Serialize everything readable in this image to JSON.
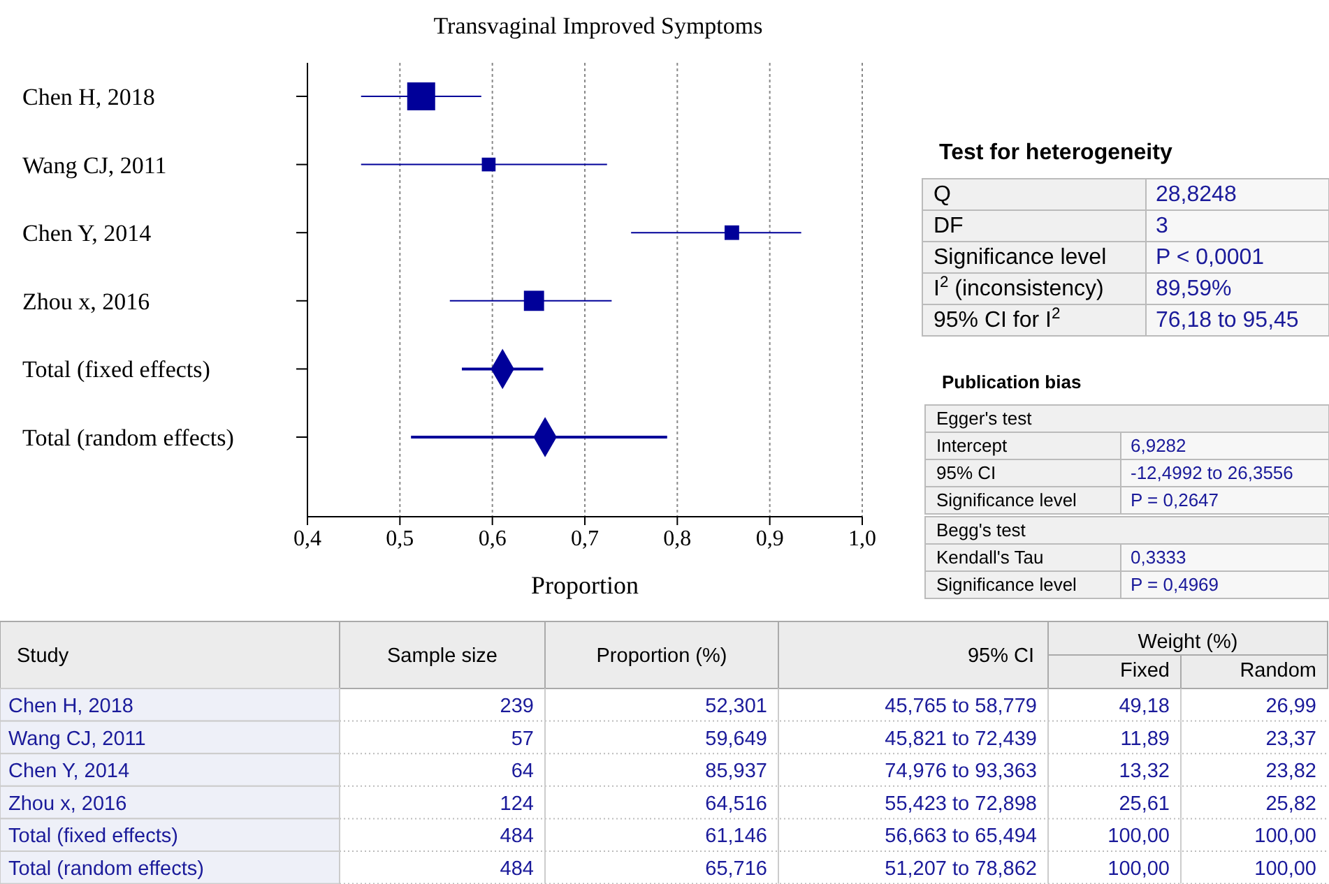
{
  "chart_data": [
    {
      "type": "scatter",
      "title": "Transvaginal Improved Symptoms",
      "xlabel": "Proportion",
      "orientation": "horizontal",
      "grid": "x",
      "categories": [
        "Chen H, 2018",
        "Wang CJ, 2011",
        "Chen Y, 2014",
        "Zhou x, 2016",
        "Total (fixed effects)",
        "Total (random effects)"
      ],
      "xlim": [
        0.4,
        1.0
      ],
      "xticks": [
        {
          "value": 0.4,
          "label": "0,4"
        },
        {
          "value": 0.5,
          "label": "0,5"
        },
        {
          "value": 0.6,
          "label": "0,6"
        },
        {
          "value": 0.7,
          "label": "0,7"
        },
        {
          "value": 0.8,
          "label": "0,8"
        },
        {
          "value": 0.9,
          "label": "0,9"
        },
        {
          "value": 1.0,
          "label": "1,0"
        }
      ],
      "series": [
        {
          "type": "bubble",
          "marker": "square",
          "color": "#000099",
          "values": [
            0.523,
            0.596,
            0.859,
            0.645,
            null,
            null
          ],
          "sizes": [
            1,
            0.2418,
            0.2708,
            0.5207,
            null,
            null
          ],
          "errors": [
            [
              0.458,
              0.588
            ],
            [
              0.458,
              0.724
            ],
            [
              0.75,
              0.934
            ],
            [
              0.554,
              0.729
            ],
            null,
            null
          ]
        },
        {
          "type": "scatter",
          "marker": "diamond",
          "color": "#000099",
          "values": [
            null,
            null,
            null,
            null,
            0.611,
            0.657
          ],
          "errors": [
            null,
            null,
            null,
            null,
            [
              0.567,
              0.655
            ],
            [
              0.512,
              0.789
            ]
          ]
        }
      ]
    },
    {
      "type": "other",
      "title": "Test for heterogeneity",
      "annotations": [
        "Q",
        "28,8248",
        "DF",
        "3",
        "Significance level",
        "P < 0,0001",
        "I$^{2}$ (inconsistency)",
        "89,59%",
        "95% CI for I$^{2}$",
        "76,18 to 95,45"
      ]
    },
    {
      "type": "other",
      "title": "Publication bias",
      "subtitle": "Egger's test",
      "annotations": [
        "Intercept",
        "6,9282",
        "95% CI",
        "-12,4992 to 26,3556",
        "Significance level",
        "P = 0,2647"
      ]
    },
    {
      "type": "other",
      "title": "Begg's test",
      "annotations": [
        "Kendall's Tau",
        "0,3333",
        "Significance level",
        "P = 0,4969"
      ]
    },
    {
      "type": "other",
      "categories": [
        "Study",
        "Sample size",
        "Proportion (%)",
        "95% CI",
        "Fixed",
        "Random"
      ],
      "subtitle": "Weight (%)",
      "annotations": [
        "Chen H, 2018",
        "239",
        "52,301",
        "45,765 to 58,779",
        "49,18",
        "26,99",
        "Wang CJ, 2011",
        "57",
        "59,649",
        "45,821 to 72,439",
        "11,89",
        "23,37",
        "Chen Y, 2014",
        "64",
        "85,937",
        "74,976 to 93,363",
        "13,32",
        "23,82",
        "Zhou x, 2016",
        "124",
        "64,516",
        "55,423 to 72,898",
        "25,61",
        "25,82",
        "Total (fixed effects)",
        "484",
        "61,146",
        "56,663 to 65,494",
        "100,00",
        "100,00",
        "Total (random effects)",
        "484",
        "65,716",
        "51,207 to 78,862",
        "100,00",
        "100,00"
      ]
    }
  ]
}
